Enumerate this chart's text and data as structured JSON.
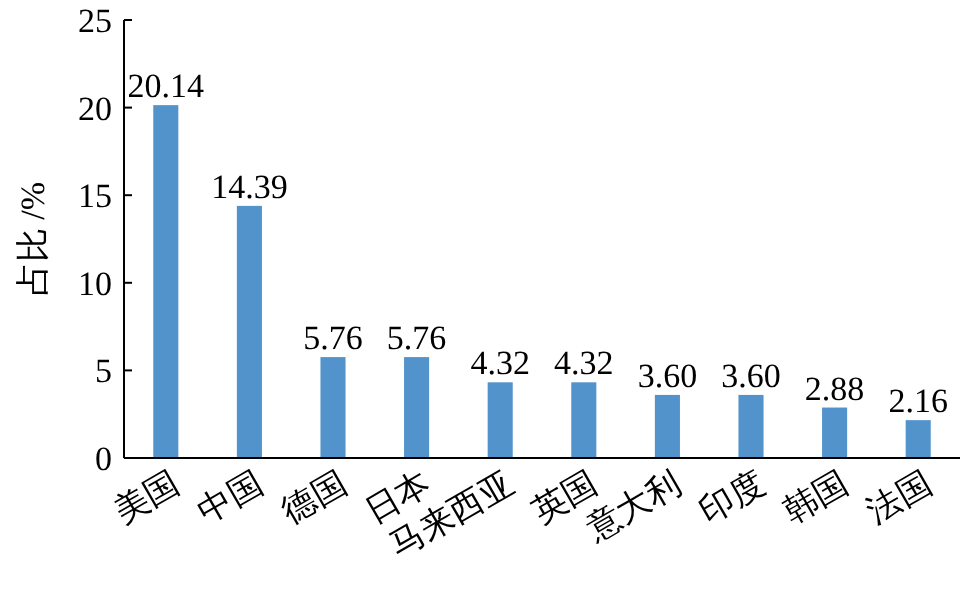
{
  "chart_data": {
    "type": "bar",
    "categories": [
      "美国",
      "中国",
      "德国",
      "日本",
      "马来西亚",
      "英国",
      "意大利",
      "印度",
      "韩国",
      "法国"
    ],
    "values": [
      20.14,
      14.39,
      5.76,
      5.76,
      4.32,
      4.32,
      3.6,
      3.6,
      2.88,
      2.16
    ],
    "value_labels": [
      "20.14",
      "14.39",
      "5.76",
      "5.76",
      "4.32",
      "4.32",
      "3.60",
      "3.60",
      "2.88",
      "2.16"
    ],
    "color": "#5393cc",
    "ylabel": "占比 /%",
    "ylim": [
      0,
      25
    ],
    "yticks": [
      0,
      5,
      10,
      15,
      20,
      25
    ]
  }
}
